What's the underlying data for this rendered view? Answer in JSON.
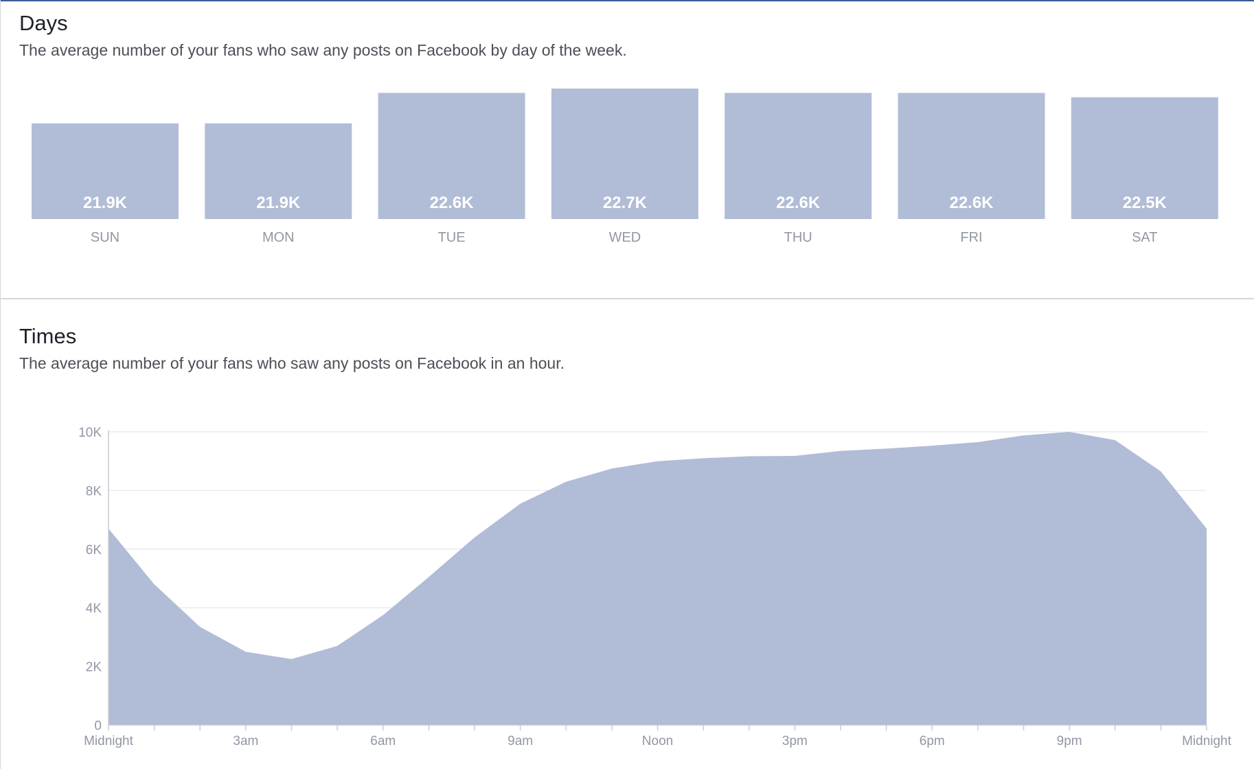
{
  "days": {
    "title": "Days",
    "description": "The average number of your fans who saw any posts on Facebook by day of the week."
  },
  "times": {
    "title": "Times",
    "description": "The average number of your fans who saw any posts on Facebook in an hour."
  },
  "colors": {
    "bar_fill": "#b1bcd7",
    "area_fill": "#b1bcd7",
    "grid": "#e9ebee",
    "axis": "#c9ccd1",
    "label": "#9197a3",
    "accent": "#3b5998"
  },
  "chart_data": [
    {
      "type": "bar",
      "categories": [
        "SUN",
        "MON",
        "TUE",
        "WED",
        "THU",
        "FRI",
        "SAT"
      ],
      "values": [
        21900,
        21900,
        22600,
        22700,
        22600,
        22600,
        22500
      ],
      "value_labels": [
        "21.9K",
        "21.9K",
        "22.6K",
        "22.7K",
        "22.6K",
        "22.6K",
        "22.5K"
      ]
    },
    {
      "type": "area",
      "x": [
        0,
        1,
        2,
        3,
        4,
        5,
        6,
        7,
        8,
        9,
        10,
        11,
        12,
        13,
        14,
        15,
        16,
        17,
        18,
        19,
        20,
        21,
        22,
        23,
        24
      ],
      "values": [
        6700,
        4800,
        3350,
        2500,
        2250,
        2700,
        3750,
        5050,
        6400,
        7550,
        8300,
        8750,
        9000,
        9100,
        9170,
        9180,
        9350,
        9430,
        9530,
        9650,
        9880,
        10000,
        9720,
        8650,
        6700
      ],
      "ylim": [
        0,
        10000
      ],
      "y_ticks": [
        0,
        2000,
        4000,
        6000,
        8000,
        10000
      ],
      "y_tick_labels": [
        "0",
        "2K",
        "4K",
        "6K",
        "8K",
        "10K"
      ],
      "x_tick_positions": [
        0,
        3,
        6,
        9,
        12,
        15,
        18,
        21,
        24
      ],
      "x_tick_labels": [
        "Midnight",
        "3am",
        "6am",
        "9am",
        "Noon",
        "3pm",
        "6pm",
        "9pm",
        "Midnight"
      ],
      "grid": true
    }
  ]
}
